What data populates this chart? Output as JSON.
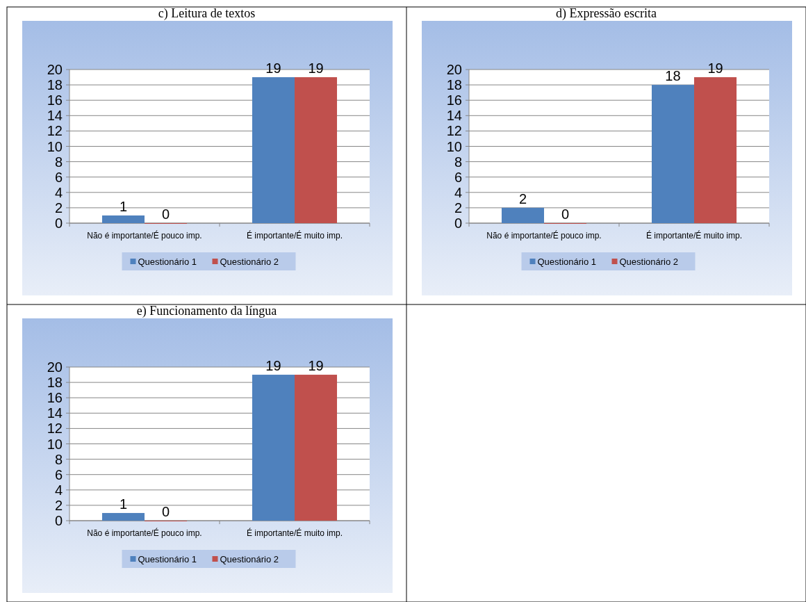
{
  "chart_data": [
    {
      "type": "bar",
      "title": "c) Leitura de textos",
      "categories": [
        "Não é importante/É pouco imp.",
        "É importante/É muito imp."
      ],
      "series": [
        {
          "name": "Questionário 1",
          "color": "#4f81bd",
          "values": [
            1,
            19
          ]
        },
        {
          "name": "Questionário 2",
          "color": "#c0504d",
          "values": [
            0,
            19
          ]
        }
      ],
      "ylim": [
        0,
        20
      ],
      "yticks": [
        0,
        2,
        4,
        6,
        8,
        10,
        12,
        14,
        16,
        18,
        20
      ],
      "grid": "y",
      "legend": "bottom",
      "data_labels": true
    },
    {
      "type": "bar",
      "title": "d) Expressão escrita",
      "categories": [
        "Não é importante/É pouco imp.",
        "É importante/É muito imp."
      ],
      "series": [
        {
          "name": "Questionário 1",
          "color": "#4f81bd",
          "values": [
            2,
            18
          ]
        },
        {
          "name": "Questionário 2",
          "color": "#c0504d",
          "values": [
            0,
            19
          ]
        }
      ],
      "ylim": [
        0,
        20
      ],
      "yticks": [
        0,
        2,
        4,
        6,
        8,
        10,
        12,
        14,
        16,
        18,
        20
      ],
      "grid": "y",
      "legend": "bottom",
      "data_labels": true
    },
    {
      "type": "bar",
      "title": "e) Funcionamento da língua",
      "categories": [
        "Não é importante/É pouco imp.",
        "É importante/É muito imp."
      ],
      "series": [
        {
          "name": "Questionário 1",
          "color": "#4f81bd",
          "values": [
            1,
            19
          ]
        },
        {
          "name": "Questionário 2",
          "color": "#c0504d",
          "values": [
            0,
            19
          ]
        }
      ],
      "ylim": [
        0,
        20
      ],
      "yticks": [
        0,
        2,
        4,
        6,
        8,
        10,
        12,
        14,
        16,
        18,
        20
      ],
      "grid": "y",
      "legend": "bottom",
      "data_labels": true
    }
  ]
}
